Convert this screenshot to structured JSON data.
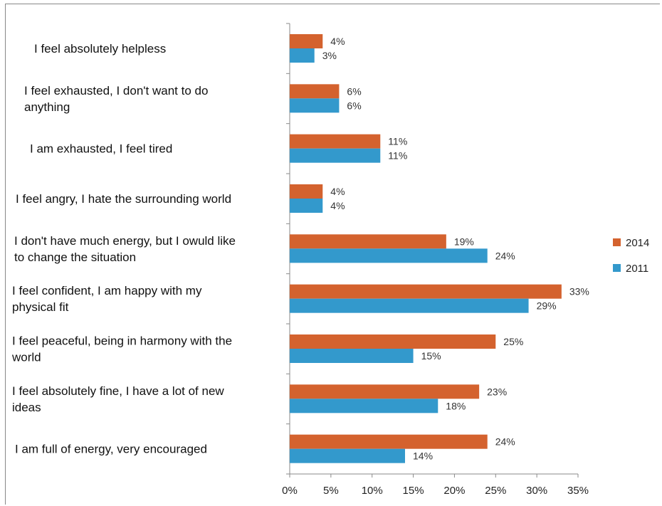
{
  "chart_data": {
    "type": "bar",
    "orientation": "horizontal",
    "categories": [
      "I feel absolutely helpless",
      "I feel exhausted, I don't want to do anything",
      "I am exhausted, I feel tired",
      "I feel angry, I hate the surrounding world",
      "I don't have much energy, but I owuld like to change the situation",
      "I feel confident, I am happy with my physical fit",
      "I feel peaceful, being in harmony with the world",
      "I feel absolutely fine, I have a lot of new ideas",
      "I am full of energy, very encouraged"
    ],
    "category_lines": [
      [
        "I feel absolutely helpless"
      ],
      [
        "I feel exhausted, I don't want to do",
        "anything"
      ],
      [
        "I am exhausted, I feel tired"
      ],
      [
        "I feel angry, I hate the surrounding world"
      ],
      [
        "I don't have much energy, but I owuld like",
        "to change the situation"
      ],
      [
        "I feel confident, I am happy with my",
        "physical fit"
      ],
      [
        "I feel peaceful, being in harmony with the",
        "world"
      ],
      [
        "I feel absolutely fine, I have a lot of new",
        "ideas"
      ],
      [
        "I am full of energy, very encouraged"
      ]
    ],
    "series": [
      {
        "name": "2014",
        "color": "#D4622E",
        "values": [
          4,
          6,
          11,
          4,
          19,
          33,
          25,
          23,
          24
        ],
        "labels": [
          "4%",
          "6%",
          "11%",
          "4%",
          "19%",
          "33%",
          "25%",
          "23%",
          "24%"
        ]
      },
      {
        "name": "2011",
        "color": "#3399CC",
        "values": [
          3,
          6,
          11,
          4,
          24,
          29,
          15,
          18,
          14
        ],
        "labels": [
          "3%",
          "6%",
          "11%",
          "4%",
          "24%",
          "29%",
          "15%",
          "18%",
          "14%"
        ]
      }
    ],
    "xlim": [
      0,
      35
    ],
    "xticks": [
      "0%",
      "5%",
      "10%",
      "15%",
      "20%",
      "25%",
      "30%",
      "35%"
    ],
    "xtick_values": [
      0,
      5,
      10,
      15,
      20,
      25,
      30,
      35
    ],
    "grid": false,
    "legend_position": "right",
    "title": "",
    "xlabel": "",
    "ylabel": ""
  }
}
